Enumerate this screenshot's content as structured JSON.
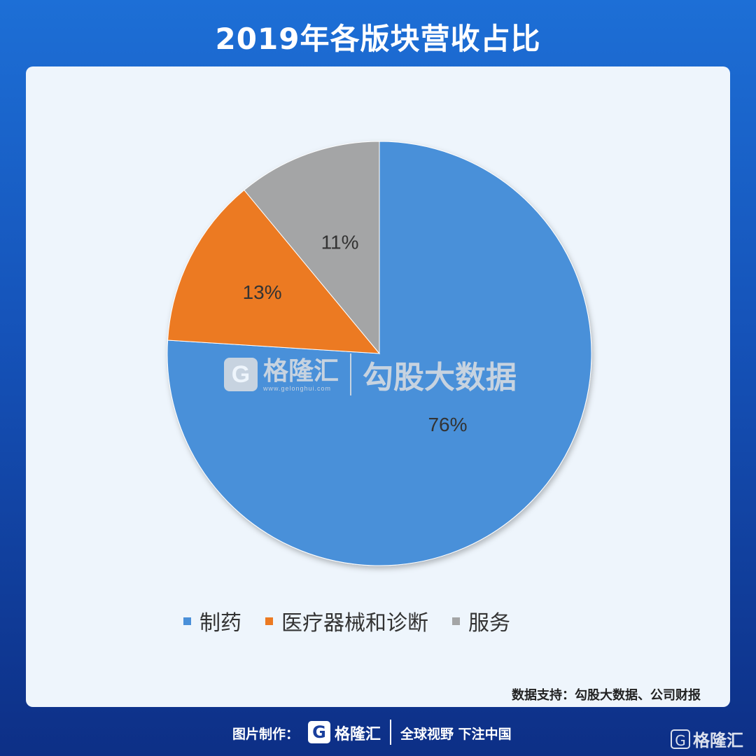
{
  "header": {
    "title": "2019年各版块营收占比"
  },
  "chart_data": {
    "type": "pie",
    "categories": [
      "制药",
      "医疗器械和诊断",
      "服务"
    ],
    "values": [
      76,
      13,
      11
    ],
    "labels": [
      "76%",
      "13%",
      "11%"
    ],
    "colors": [
      "#4a90d9",
      "#ec7a22",
      "#a4a5a6"
    ],
    "legend_position": "bottom"
  },
  "watermark": {
    "brand": "格隆汇",
    "url": "www.gelonghui.com",
    "sub": "勾股大数据"
  },
  "source": "数据支持：勾股大数据、公司财报",
  "footer": {
    "made_by": "图片制作：",
    "logo_letter": "G",
    "brand": "格隆汇",
    "slogan": "全球视野 下注中国"
  },
  "corner": {
    "logo_letter": "G",
    "brand": "格隆汇"
  }
}
